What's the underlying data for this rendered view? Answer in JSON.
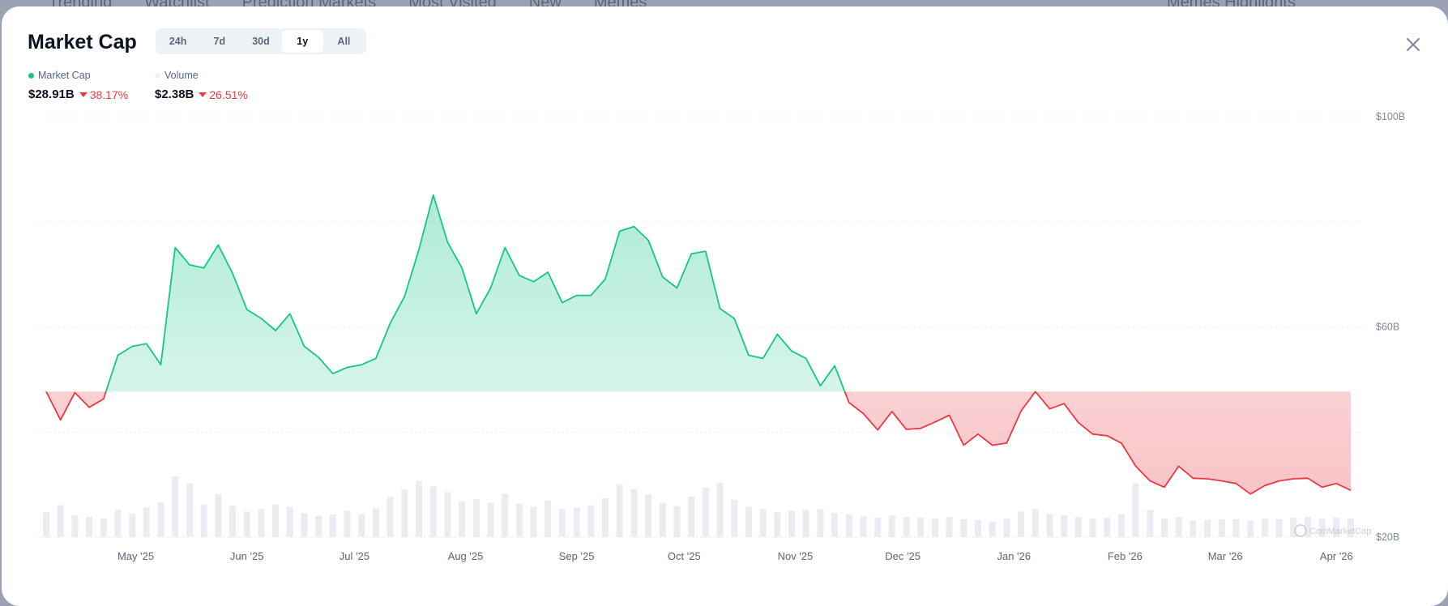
{
  "backdrop": {
    "nav": [
      "Trending",
      "Watchlist",
      "Prediction Markets",
      "Most Visited",
      "New",
      "Memes"
    ],
    "right": "Memes Highlights"
  },
  "header": {
    "title": "Market Cap",
    "tabs": [
      {
        "label": "24h"
      },
      {
        "label": "7d"
      },
      {
        "label": "30d"
      },
      {
        "label": "1y",
        "active": true
      },
      {
        "label": "All"
      }
    ],
    "close_icon": "close-icon"
  },
  "legend": {
    "market_cap": {
      "label": "Market Cap",
      "value": "$28.91B",
      "change": "38.17%",
      "direction": "down",
      "color": "#16c784"
    },
    "volume": {
      "label": "Volume",
      "value": "$2.38B",
      "change": "26.51%",
      "direction": "down",
      "color": "#eff2f5"
    }
  },
  "watermark": "CoinMarketCap",
  "colors": {
    "up": "#16c784",
    "down": "#ea3943",
    "volume": "#e9edf2",
    "grid": "#e3e6eb"
  },
  "chart_data": {
    "type": "line",
    "y_unit": "USD billions",
    "ylim": [
      20,
      100
    ],
    "yticks": [
      {
        "value": 100,
        "label": "$100B"
      },
      {
        "value": 60,
        "label": "$60B"
      },
      {
        "value": 20,
        "label": "$20B"
      }
    ],
    "gridlines": [
      100,
      80,
      60,
      40,
      20
    ],
    "grid": true,
    "baseline": 47.7,
    "xticks": [
      {
        "date": "2025-05-01",
        "label": "May '25"
      },
      {
        "date": "2025-06-01",
        "label": "Jun '25"
      },
      {
        "date": "2025-07-01",
        "label": "Jul '25"
      },
      {
        "date": "2025-08-01",
        "label": "Aug '25"
      },
      {
        "date": "2025-09-01",
        "label": "Sep '25"
      },
      {
        "date": "2025-10-01",
        "label": "Oct '25"
      },
      {
        "date": "2025-11-01",
        "label": "Nov '25"
      },
      {
        "date": "2025-12-01",
        "label": "Dec '25"
      },
      {
        "date": "2026-01-01",
        "label": "Jan '26"
      },
      {
        "date": "2026-02-01",
        "label": "Feb '26"
      },
      {
        "date": "2026-03-01",
        "label": "Mar '26"
      },
      {
        "date": "2026-04-01",
        "label": "Apr '26"
      }
    ],
    "x": [
      "2025-04-06",
      "2025-04-10",
      "2025-04-14",
      "2025-04-18",
      "2025-04-22",
      "2025-04-26",
      "2025-04-30",
      "2025-05-04",
      "2025-05-08",
      "2025-05-12",
      "2025-05-16",
      "2025-05-20",
      "2025-05-24",
      "2025-05-28",
      "2025-06-01",
      "2025-06-05",
      "2025-06-09",
      "2025-06-13",
      "2025-06-17",
      "2025-06-21",
      "2025-06-25",
      "2025-06-29",
      "2025-07-03",
      "2025-07-07",
      "2025-07-11",
      "2025-07-15",
      "2025-07-19",
      "2025-07-23",
      "2025-07-27",
      "2025-07-31",
      "2025-08-04",
      "2025-08-08",
      "2025-08-12",
      "2025-08-16",
      "2025-08-20",
      "2025-08-24",
      "2025-08-28",
      "2025-09-01",
      "2025-09-05",
      "2025-09-09",
      "2025-09-13",
      "2025-09-17",
      "2025-09-21",
      "2025-09-25",
      "2025-09-29",
      "2025-10-03",
      "2025-10-07",
      "2025-10-11",
      "2025-10-15",
      "2025-10-19",
      "2025-10-23",
      "2025-10-27",
      "2025-10-31",
      "2025-11-04",
      "2025-11-08",
      "2025-11-12",
      "2025-11-16",
      "2025-11-20",
      "2025-11-24",
      "2025-11-28",
      "2025-12-02",
      "2025-12-06",
      "2025-12-10",
      "2025-12-14",
      "2025-12-18",
      "2025-12-22",
      "2025-12-26",
      "2025-12-30",
      "2026-01-03",
      "2026-01-07",
      "2026-01-11",
      "2026-01-15",
      "2026-01-19",
      "2026-01-23",
      "2026-01-27",
      "2026-01-31",
      "2026-02-04",
      "2026-02-08",
      "2026-02-12",
      "2026-02-16",
      "2026-02-20",
      "2026-02-24",
      "2026-02-28",
      "2026-03-04",
      "2026-03-08",
      "2026-03-12",
      "2026-03-16",
      "2026-03-20",
      "2026-03-24",
      "2026-03-28",
      "2026-04-01",
      "2026-04-05"
    ],
    "series": [
      {
        "key": "market_cap",
        "values": [
          47.7,
          42.3,
          47.5,
          44.7,
          46.3,
          54.6,
          56.3,
          56.8,
          52.8,
          75.1,
          71.8,
          71.2,
          75.6,
          70.2,
          63.3,
          61.6,
          59.3,
          62.5,
          56.3,
          54.2,
          51.1,
          52.3,
          52.8,
          54.0,
          60.7,
          65.8,
          74.7,
          85.1,
          76.1,
          71.2,
          62.5,
          67.4,
          75.1,
          69.8,
          68.6,
          70.4,
          64.6,
          66.0,
          66.0,
          69.1,
          78.2,
          79.1,
          76.5,
          69.5,
          67.4,
          73.9,
          74.4,
          63.5,
          61.6,
          54.6,
          54.0,
          58.6,
          55.4,
          54.0,
          48.8,
          52.6,
          45.6,
          43.5,
          40.4,
          43.9,
          40.5,
          40.7,
          41.9,
          43.2,
          37.5,
          39.6,
          37.5,
          37.9,
          44.0,
          47.7,
          44.4,
          45.4,
          41.8,
          39.6,
          39.3,
          37.9,
          33.5,
          30.7,
          29.5,
          33.5,
          31.2,
          31.1,
          30.7,
          30.2,
          28.2,
          29.8,
          30.7,
          31.1,
          31.2,
          29.5,
          30.2,
          28.91
        ]
      },
      {
        "key": "volume",
        "values": [
          3.2,
          4.1,
          2.8,
          2.6,
          2.4,
          3.5,
          3.0,
          3.8,
          4.5,
          7.8,
          6.9,
          4.2,
          5.5,
          4.0,
          3.3,
          3.6,
          4.2,
          3.9,
          3.1,
          2.7,
          2.9,
          3.4,
          3.0,
          3.7,
          5.2,
          6.1,
          7.2,
          6.5,
          5.8,
          4.6,
          4.9,
          4.4,
          5.6,
          4.3,
          3.9,
          4.7,
          3.6,
          3.8,
          4.1,
          5.0,
          6.8,
          6.2,
          5.5,
          4.4,
          4.0,
          5.2,
          6.4,
          7.0,
          4.8,
          3.9,
          3.6,
          3.2,
          3.4,
          3.5,
          3.6,
          3.1,
          2.9,
          2.7,
          2.5,
          2.8,
          2.6,
          2.5,
          2.4,
          2.6,
          2.3,
          2.2,
          2.0,
          2.4,
          3.3,
          3.6,
          3.0,
          2.8,
          2.6,
          2.4,
          2.5,
          3.0,
          6.9,
          3.5,
          2.4,
          2.6,
          2.1,
          2.2,
          2.3,
          2.3,
          2.1,
          2.4,
          2.3,
          2.5,
          2.6,
          2.4,
          2.5,
          2.38
        ]
      }
    ]
  }
}
